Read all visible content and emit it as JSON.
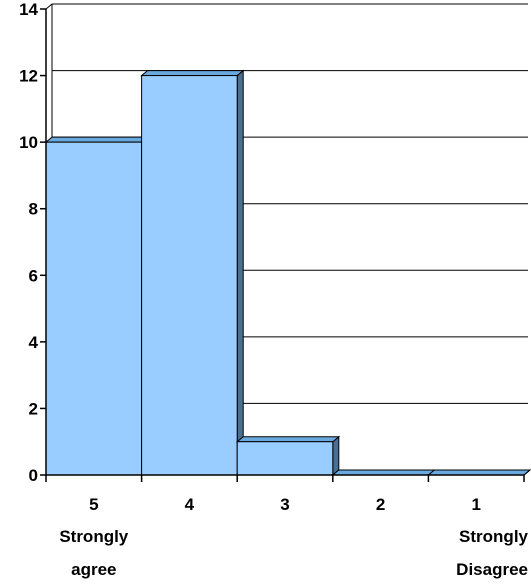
{
  "chart_data": {
    "type": "bar",
    "categories": [
      "5",
      "4",
      "3",
      "2",
      "1"
    ],
    "category_sublabels": [
      [
        "Strongly",
        "agree"
      ],
      [],
      [],
      [],
      [
        "Strongly",
        "Disagree"
      ]
    ],
    "values": [
      10,
      12,
      1,
      0,
      0
    ],
    "title": "",
    "xlabel": "",
    "ylabel": "",
    "ylim": [
      0,
      14
    ],
    "yticks": [
      0,
      2,
      4,
      6,
      8,
      10,
      12,
      14
    ],
    "grid": true,
    "legend": "none",
    "style": "3d-histogram",
    "colors": {
      "bar_front": "#99ccff",
      "bar_top": "#6aa9de",
      "bar_side": "#4a6f91",
      "grid": "#000000"
    }
  }
}
